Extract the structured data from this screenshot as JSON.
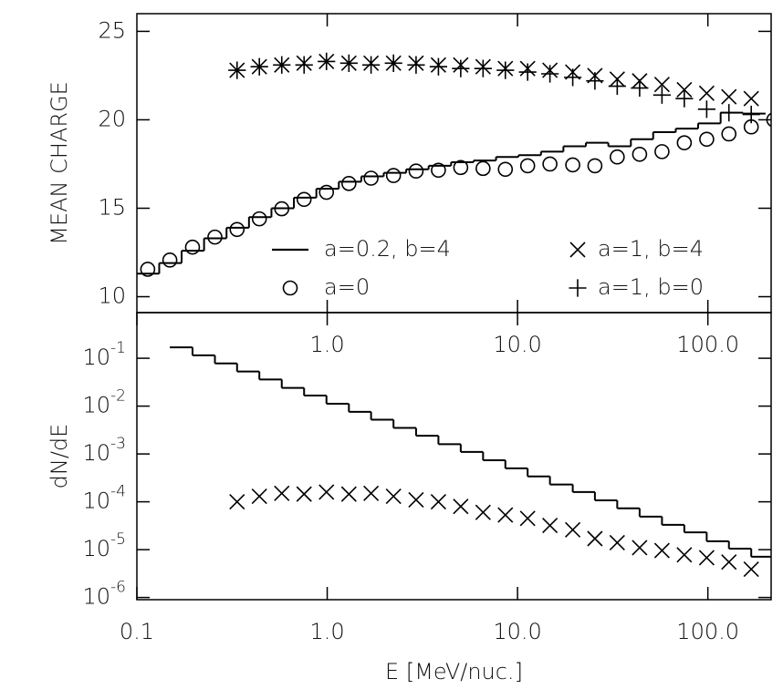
{
  "chart_data": [
    {
      "type": "scatter",
      "xlog": true,
      "y_label": "MEAN CHARGE",
      "xlim": [
        0.1,
        215
      ],
      "ylim": [
        9.1,
        26
      ],
      "xticks": [
        {
          "value": 1,
          "label": "1.0"
        },
        {
          "value": 10,
          "label": "10.0"
        },
        {
          "value": 100,
          "label": "100.0"
        }
      ],
      "yticks": [
        10,
        15,
        20,
        25
      ],
      "legend": "lower right",
      "series": [
        {
          "name": "a=0.2, b=4",
          "marker": "step",
          "color": "#000000",
          "bins": [
            0.1,
            0.131,
            0.1718,
            0.2254,
            0.2958,
            0.3881,
            0.5093,
            0.6683,
            0.877,
            1.151,
            1.51,
            1.981,
            2.6,
            3.412,
            4.477,
            5.875,
            7.709,
            10.12,
            13.28,
            17.42,
            22.86,
            30.0,
            39.4,
            51.6,
            67.8,
            88.9,
            116.7,
            153.1,
            200.9
          ],
          "values": [
            11.3,
            11.9,
            12.6,
            13.3,
            13.9,
            14.5,
            15.0,
            15.6,
            16.1,
            16.5,
            16.8,
            17.0,
            17.2,
            17.4,
            17.6,
            17.7,
            17.9,
            18.0,
            18.2,
            18.5,
            18.7,
            18.5,
            18.9,
            19.3,
            19.5,
            19.8,
            20.4,
            20.35
          ]
        },
        {
          "name": "a=1, b=4",
          "marker": "x",
          "color": "#000000",
          "x": [
            0.336,
            0.44,
            0.577,
            0.756,
            0.991,
            1.3,
            1.7,
            2.23,
            2.93,
            3.84,
            5.03,
            6.59,
            8.63,
            11.3,
            14.8,
            19.5,
            25.5,
            33.4,
            43.8,
            57.4,
            75.2,
            98.6,
            129,
            169
          ],
          "values": [
            22.8,
            23.0,
            23.1,
            23.2,
            23.3,
            23.2,
            23.2,
            23.2,
            23.2,
            23.1,
            23.1,
            23.0,
            22.9,
            22.9,
            22.8,
            22.7,
            22.5,
            22.3,
            22.2,
            22.0,
            21.7,
            21.5,
            21.3,
            21.2
          ]
        },
        {
          "name": "a=0",
          "marker": "circle",
          "color": "#000000",
          "x": [
            0.114,
            0.149,
            0.196,
            0.257,
            0.336,
            0.44,
            0.577,
            0.756,
            0.991,
            1.3,
            1.7,
            2.23,
            2.93,
            3.84,
            5.03,
            6.59,
            8.63,
            11.3,
            14.8,
            19.5,
            25.5,
            33.4,
            43.8,
            57.4,
            75.2,
            98.6,
            129,
            169,
            222
          ],
          "values": [
            11.55,
            12.07,
            12.8,
            13.37,
            13.8,
            14.4,
            14.97,
            15.5,
            15.9,
            16.4,
            16.7,
            16.85,
            17.1,
            17.15,
            17.3,
            17.25,
            17.2,
            17.4,
            17.5,
            17.45,
            17.4,
            17.9,
            18.05,
            18.2,
            18.7,
            18.9,
            19.2,
            19.6,
            20.0
          ]
        },
        {
          "name": "a=1, b=0",
          "marker": "plus",
          "color": "#000000",
          "x": [
            0.336,
            0.44,
            0.577,
            0.756,
            0.991,
            1.3,
            1.7,
            2.23,
            2.93,
            3.84,
            5.03,
            6.59,
            8.63,
            11.3,
            14.8,
            19.5,
            25.5,
            33.4,
            43.8,
            57.4,
            75.2,
            98.6,
            129,
            169
          ],
          "values": [
            22.8,
            23.0,
            23.1,
            23.1,
            23.3,
            23.2,
            23.1,
            23.2,
            23.1,
            23.0,
            22.9,
            22.9,
            22.8,
            22.7,
            22.6,
            22.4,
            22.2,
            21.9,
            21.8,
            21.4,
            21.2,
            20.6,
            20.4,
            20.3
          ]
        }
      ]
    },
    {
      "type": "scatter",
      "xlog": true,
      "ylog": true,
      "y_label": "dN/dE",
      "x_label": "E [MeV/nuc.]",
      "xlim": [
        0.1,
        215
      ],
      "ylim": [
        9e-07,
        0.9
      ],
      "xticks": [
        {
          "value": 0.1,
          "label": "0.1"
        },
        {
          "value": 1,
          "label": "1.0"
        },
        {
          "value": 10,
          "label": "10.0"
        },
        {
          "value": 100,
          "label": "100.0"
        }
      ],
      "yticks": [
        {
          "value": 0.1,
          "label": "10-1"
        },
        {
          "value": 0.01,
          "label": "10-2"
        },
        {
          "value": 0.001,
          "label": "10-3"
        },
        {
          "value": 0.0001,
          "label": "10-4"
        },
        {
          "value": 1e-05,
          "label": "10-5"
        },
        {
          "value": 1e-06,
          "label": "10-6"
        }
      ],
      "series": [
        {
          "marker": "step",
          "color": "#000000",
          "bins": [
            0.149,
            0.196,
            0.257,
            0.336,
            0.44,
            0.577,
            0.756,
            0.991,
            1.3,
            1.7,
            2.23,
            2.93,
            3.84,
            5.03,
            6.59,
            8.63,
            11.3,
            14.8,
            19.5,
            25.5,
            33.4,
            43.8,
            57.4,
            75.2,
            98.6,
            129,
            169,
            222
          ],
          "values": [
            0.169,
            0.115,
            0.078,
            0.053,
            0.036,
            0.024,
            0.0166,
            0.0112,
            0.0076,
            0.0052,
            0.0035,
            0.0024,
            0.0016,
            0.0011,
            0.00074,
            0.0005,
            0.00034,
            0.00023,
            0.00016,
            0.000107,
            7.3e-05,
            4.9e-05,
            3.3e-05,
            2.3e-05,
            1.5e-05,
            1.05e-05,
            7.1e-06
          ]
        },
        {
          "marker": "x",
          "color": "#000000",
          "x": [
            0.336,
            0.44,
            0.577,
            0.756,
            0.991,
            1.3,
            1.7,
            2.23,
            2.93,
            3.84,
            5.03,
            6.59,
            8.63,
            11.3,
            14.8,
            19.5,
            25.5,
            33.4,
            43.8,
            57.4,
            75.2,
            98.6,
            129,
            169
          ],
          "values": [
            0.0001,
            0.00013,
            0.00015,
            0.000145,
            0.00016,
            0.000145,
            0.00015,
            0.00013,
            0.00011,
            0.0001,
            8e-05,
            6e-05,
            5.3e-05,
            4.5e-05,
            3.2e-05,
            2.6e-05,
            1.7e-05,
            1.4e-05,
            1.1e-05,
            9.6e-06,
            7.8e-06,
            6.8e-06,
            5.5e-06,
            3.9e-06
          ]
        }
      ]
    }
  ]
}
